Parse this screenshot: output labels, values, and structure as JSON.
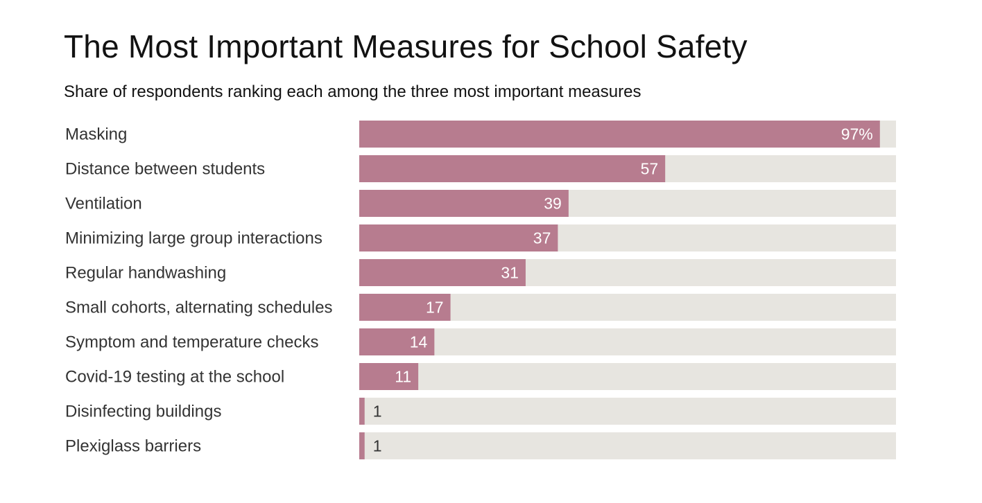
{
  "chart_data": {
    "type": "bar",
    "orientation": "horizontal",
    "title": "The Most Important Measures for School Safety",
    "subtitle": "Share of respondents ranking each among the three most important measures",
    "categories": [
      "Masking",
      "Distance between students",
      "Ventilation",
      "Minimizing large group interactions",
      "Regular handwashing",
      "Small cohorts, alternating schedules",
      "Symptom and temperature checks",
      "Covid-19 testing at the school",
      "Disinfecting buildings",
      "Plexiglass barriers"
    ],
    "values": [
      97,
      57,
      39,
      37,
      31,
      17,
      14,
      11,
      1,
      1
    ],
    "value_labels": [
      "97%",
      "57",
      "39",
      "37",
      "31",
      "17",
      "14",
      "11",
      "1",
      "1"
    ],
    "xlim": [
      0,
      100
    ],
    "grid": false,
    "legend": "none",
    "colors": {
      "bar": "#b77c8f",
      "track": "#e7e5e0",
      "label_inside": "#ffffff",
      "label_outside": "#333333",
      "category_text": "#333333"
    }
  }
}
